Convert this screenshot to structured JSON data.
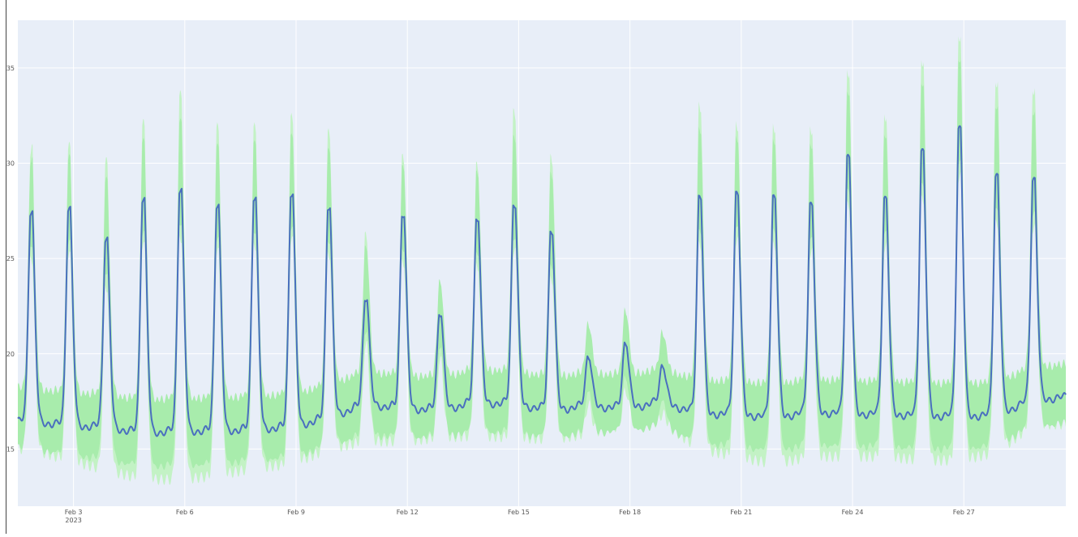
{
  "chart_data": {
    "type": "area",
    "title": "",
    "xlabel": "",
    "ylabel": "",
    "x_start": "2023-02-01 12:00",
    "x_end": "2023-02-29 18:00",
    "ylim": [
      12,
      37.5
    ],
    "grid": true,
    "legend": "none",
    "x_ticks": [
      {
        "date": "2023-02-03",
        "label": "Feb 3",
        "sub": "2023"
      },
      {
        "date": "2023-02-06",
        "label": "Feb 6",
        "sub": ""
      },
      {
        "date": "2023-02-09",
        "label": "Feb 9",
        "sub": ""
      },
      {
        "date": "2023-02-12",
        "label": "Feb 12",
        "sub": ""
      },
      {
        "date": "2023-02-15",
        "label": "Feb 15",
        "sub": ""
      },
      {
        "date": "2023-02-18",
        "label": "Feb 18",
        "sub": ""
      },
      {
        "date": "2023-02-21",
        "label": "Feb 21",
        "sub": ""
      },
      {
        "date": "2023-02-24",
        "label": "Feb 24",
        "sub": ""
      },
      {
        "date": "2023-02-27",
        "label": "Feb 27",
        "sub": ""
      }
    ],
    "y_ticks": [
      {
        "value": 15,
        "label": "15"
      },
      {
        "value": 20,
        "label": "20"
      },
      {
        "value": 25,
        "label": "25"
      },
      {
        "value": 30,
        "label": "30"
      },
      {
        "value": 35,
        "label": "35"
      }
    ],
    "days": [
      {
        "date": "2023-02-01",
        "peak_time": "2023-02-01 20:30",
        "peak": 27.4,
        "base": 16.6,
        "pi_upper_peak": 30.7,
        "pi_lower_base": 15.0
      },
      {
        "date": "2023-02-02",
        "peak_time": "2023-02-02 21:00",
        "peak": 27.6,
        "base": 16.4,
        "pi_upper_peak": 30.8,
        "pi_lower_base": 14.4
      },
      {
        "date": "2023-02-03",
        "peak_time": "2023-02-03 21:00",
        "peak": 26.0,
        "base": 16.3,
        "pi_upper_peak": 30.0,
        "pi_lower_base": 13.9
      },
      {
        "date": "2023-02-04",
        "peak_time": "2023-02-04 21:00",
        "peak": 28.1,
        "base": 16.0,
        "pi_upper_peak": 32.0,
        "pi_lower_base": 13.4
      },
      {
        "date": "2023-02-05",
        "peak_time": "2023-02-05 21:00",
        "peak": 28.6,
        "base": 16.1,
        "pi_upper_peak": 33.5,
        "pi_lower_base": 13.4
      },
      {
        "date": "2023-02-06",
        "peak_time": "2023-02-06 21:00",
        "peak": 27.8,
        "base": 16.1,
        "pi_upper_peak": 31.8,
        "pi_lower_base": 13.6
      },
      {
        "date": "2023-02-07",
        "peak_time": "2023-02-07 21:00",
        "peak": 28.2,
        "base": 16.2,
        "pi_upper_peak": 31.8,
        "pi_lower_base": 14.0
      },
      {
        "date": "2023-02-08",
        "peak_time": "2023-02-08 21:00",
        "peak": 28.4,
        "base": 16.3,
        "pi_upper_peak": 32.3,
        "pi_lower_base": 14.2
      },
      {
        "date": "2023-02-09",
        "peak_time": "2023-02-09 21:00",
        "peak": 27.7,
        "base": 16.8,
        "pi_upper_peak": 31.5,
        "pi_lower_base": 15.0
      },
      {
        "date": "2023-02-10",
        "peak_time": "2023-02-10 21:00",
        "peak": 22.9,
        "base": 17.5,
        "pi_upper_peak": 26.1,
        "pi_lower_base": 15.4
      },
      {
        "date": "2023-02-11",
        "peak_time": "2023-02-11 21:00",
        "peak": 27.3,
        "base": 17.3,
        "pi_upper_peak": 30.2,
        "pi_lower_base": 15.4
      },
      {
        "date": "2023-02-12",
        "peak_time": "2023-02-12 21:00",
        "peak": 22.1,
        "base": 17.2,
        "pi_upper_peak": 23.5,
        "pi_lower_base": 15.6
      },
      {
        "date": "2023-02-13",
        "peak_time": "2023-02-13 21:00",
        "peak": 27.1,
        "base": 17.6,
        "pi_upper_peak": 29.8,
        "pi_lower_base": 15.7
      },
      {
        "date": "2023-02-14",
        "peak_time": "2023-02-14 21:00",
        "peak": 27.8,
        "base": 17.5,
        "pi_upper_peak": 32.6,
        "pi_lower_base": 15.6
      },
      {
        "date": "2023-02-15",
        "peak_time": "2023-02-15 21:00",
        "peak": 26.4,
        "base": 17.2,
        "pi_upper_peak": 30.2,
        "pi_lower_base": 15.5
      },
      {
        "date": "2023-02-16",
        "peak_time": "2023-02-16 21:00",
        "peak": 19.8,
        "base": 17.4,
        "pi_upper_peak": 21.3,
        "pi_lower_base": 15.8
      },
      {
        "date": "2023-02-17",
        "peak_time": "2023-02-17 21:00",
        "peak": 20.5,
        "base": 17.3,
        "pi_upper_peak": 22.0,
        "pi_lower_base": 16.3
      },
      {
        "date": "2023-02-18",
        "peak_time": "2023-02-18 21:00",
        "peak": 19.3,
        "base": 17.6,
        "pi_upper_peak": 20.9,
        "pi_lower_base": 16.4
      },
      {
        "date": "2023-02-19",
        "peak_time": "2023-02-19 21:00",
        "peak": 28.2,
        "base": 17.0,
        "pi_upper_peak": 33.0,
        "pi_lower_base": 15.0
      },
      {
        "date": "2023-02-20",
        "peak_time": "2023-02-20 21:00",
        "peak": 28.4,
        "base": 17.0,
        "pi_upper_peak": 32.0,
        "pi_lower_base": 14.6
      },
      {
        "date": "2023-02-21",
        "peak_time": "2023-02-21 21:00",
        "peak": 28.2,
        "base": 16.8,
        "pi_upper_peak": 31.9,
        "pi_lower_base": 14.2
      },
      {
        "date": "2023-02-22",
        "peak_time": "2023-02-22 21:00",
        "peak": 27.8,
        "base": 17.1,
        "pi_upper_peak": 31.8,
        "pi_lower_base": 14.6
      },
      {
        "date": "2023-02-23",
        "peak_time": "2023-02-23 21:00",
        "peak": 30.3,
        "base": 17.0,
        "pi_upper_peak": 34.8,
        "pi_lower_base": 14.6
      },
      {
        "date": "2023-02-24",
        "peak_time": "2023-02-24 21:00",
        "peak": 28.1,
        "base": 17.0,
        "pi_upper_peak": 32.5,
        "pi_lower_base": 14.6
      },
      {
        "date": "2023-02-25",
        "peak_time": "2023-02-25 21:00",
        "peak": 30.6,
        "base": 16.9,
        "pi_upper_peak": 35.4,
        "pi_lower_base": 14.4
      },
      {
        "date": "2023-02-26",
        "peak_time": "2023-02-26 21:00",
        "peak": 31.8,
        "base": 16.9,
        "pi_upper_peak": 36.7,
        "pi_lower_base": 14.4
      },
      {
        "date": "2023-02-27",
        "peak_time": "2023-02-27 21:00",
        "peak": 29.3,
        "base": 16.9,
        "pi_upper_peak": 34.3,
        "pi_lower_base": 14.8
      },
      {
        "date": "2023-02-28",
        "peak_time": "2023-02-28 21:00",
        "peak": 29.1,
        "base": 17.8,
        "pi_upper_peak": 33.9,
        "pi_lower_base": 16.3
      }
    ],
    "colors": {
      "plot_bg": "#e8eef8",
      "grid": "#ffffff",
      "line": "#4a6fbf",
      "band_inner": "#a8ecac",
      "band_outer": "#c3f2c5",
      "tick_text": "#555555"
    }
  }
}
